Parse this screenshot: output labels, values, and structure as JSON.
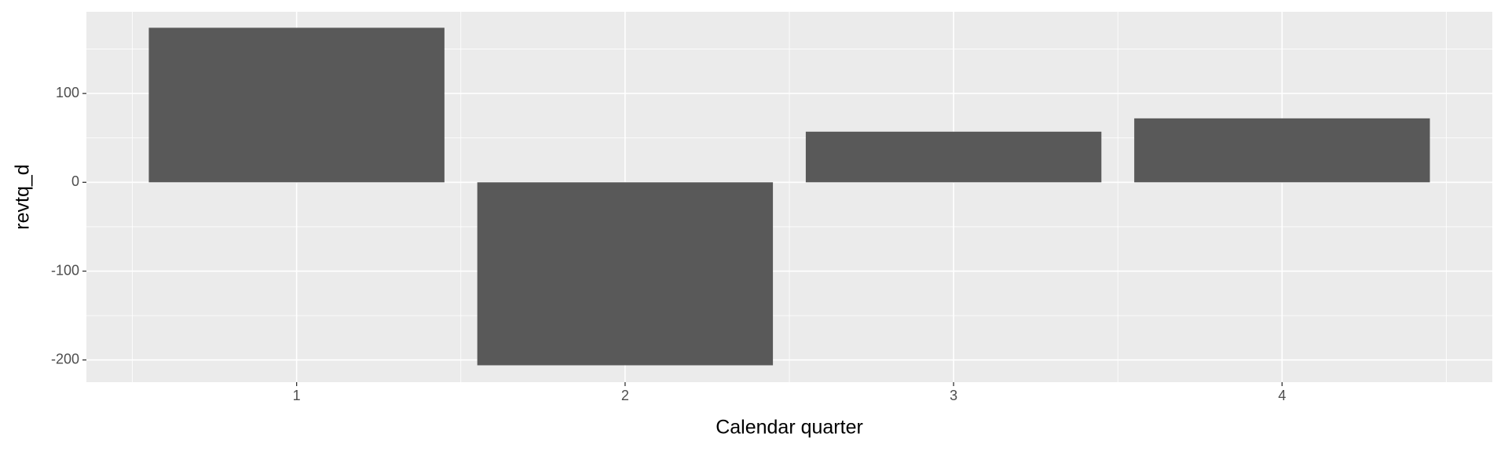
{
  "chart_data": {
    "type": "bar",
    "x": [
      1,
      2,
      3,
      4
    ],
    "values": [
      174,
      -206,
      57,
      72
    ],
    "color": "#595959",
    "xlabel": "Calendar quarter",
    "ylabel": "revtq_d",
    "xlim": [
      0.36,
      4.64
    ],
    "xticks": [
      1,
      2,
      3,
      4
    ],
    "xminor": [
      0.5,
      1.5,
      2.5,
      3.5,
      4.5
    ],
    "ylim": [
      -225,
      192
    ],
    "yticks": [
      -200,
      -100,
      0,
      100
    ],
    "yminor": [
      -150,
      -50,
      50,
      150
    ],
    "grid": true
  }
}
